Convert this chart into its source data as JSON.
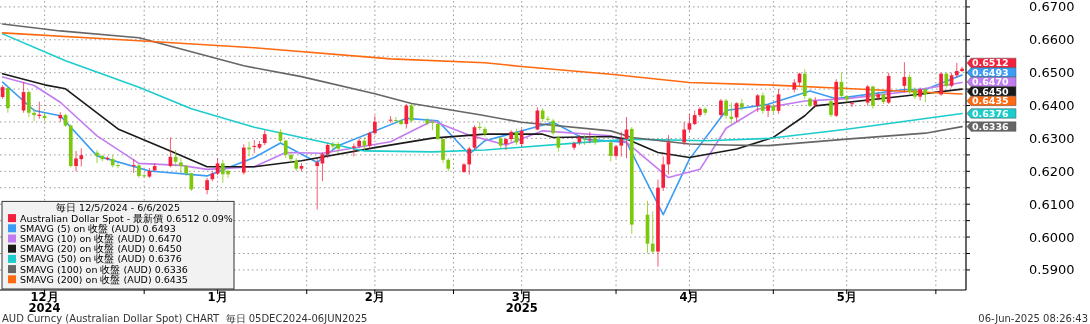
{
  "chart_data": {
    "type": "candlestick",
    "legend_title": "毎日 12/5/2024 - 6/6/2025",
    "legend": "bottom left",
    "grid": true,
    "xlim": [
      "2024-12-04T12:00",
      "2025-06-06T18:00"
    ],
    "ylim": [
      0.5839,
      0.6718
    ],
    "yticks": [
      {
        "value": 0.59,
        "label": "0.5900"
      },
      {
        "value": 0.595,
        "label": null
      },
      {
        "value": 0.6,
        "label": "0.6000"
      },
      {
        "value": 0.605,
        "label": null
      },
      {
        "value": 0.61,
        "label": "0.6100"
      },
      {
        "value": 0.615,
        "label": null
      },
      {
        "value": 0.62,
        "label": "0.6200"
      },
      {
        "value": 0.625,
        "label": null
      },
      {
        "value": 0.63,
        "label": "0.6300"
      },
      {
        "value": 0.635,
        "label": null
      },
      {
        "value": 0.64,
        "label": "0.6400"
      },
      {
        "value": 0.645,
        "label": null
      },
      {
        "value": 0.65,
        "label": "0.6500"
      },
      {
        "value": 0.655,
        "label": null
      },
      {
        "value": 0.66,
        "label": "0.6600"
      },
      {
        "value": 0.665,
        "label": null
      },
      {
        "value": 0.67,
        "label": "0.6700"
      }
    ],
    "xticks": [
      {
        "value": "2024-12-13",
        "label": "12月\n2024"
      },
      {
        "value": "2025-01-01",
        "label": null
      },
      {
        "value": "2025-01-15",
        "label": "1月"
      },
      {
        "value": "2025-02-01",
        "label": null
      },
      {
        "value": "2025-02-14",
        "label": "2月"
      },
      {
        "value": "2025-03-01",
        "label": null
      },
      {
        "value": "2025-03-14",
        "label": "3月\n2025"
      },
      {
        "value": "2025-04-01",
        "label": null
      },
      {
        "value": "2025-04-15",
        "label": "4月"
      },
      {
        "value": "2025-05-01",
        "label": null
      },
      {
        "value": "2025-05-15",
        "label": "5月"
      },
      {
        "value": "2025-06-01",
        "label": null
      }
    ],
    "annotations": [
      "AUD Curncy (Australian Dollar Spot) CHART  毎日 05DEC2024-06JUN2025",
      "06-Jun-2025 08:26:43"
    ],
    "series": [
      {
        "name": "Australian Dollar Spot - 最新價 0.6512 0.09%",
        "color": "#f5203c",
        "x": [
          "2024-12-05",
          "2024-12-06",
          "2024-12-09",
          "2024-12-10",
          "2024-12-11",
          "2024-12-12",
          "2024-12-13",
          "2024-12-16",
          "2024-12-17",
          "2024-12-18",
          "2024-12-19",
          "2024-12-20",
          "2024-12-23",
          "2024-12-24",
          "2024-12-25",
          "2024-12-26",
          "2024-12-27",
          "2024-12-30",
          "2024-12-31",
          "2025-01-01",
          "2025-01-02",
          "2025-01-03",
          "2025-01-06",
          "2025-01-07",
          "2025-01-08",
          "2025-01-09",
          "2025-01-10",
          "2025-01-13",
          "2025-01-14",
          "2025-01-15",
          "2025-01-16",
          "2025-01-17",
          "2025-01-20",
          "2025-01-21",
          "2025-01-22",
          "2025-01-23",
          "2025-01-24",
          "2025-01-27",
          "2025-01-28",
          "2025-01-29",
          "2025-01-30",
          "2025-01-31",
          "2025-02-03",
          "2025-02-04",
          "2025-02-05",
          "2025-02-06",
          "2025-02-07",
          "2025-02-10",
          "2025-02-11",
          "2025-02-12",
          "2025-02-13",
          "2025-02-14",
          "2025-02-17",
          "2025-02-18",
          "2025-02-19",
          "2025-02-20",
          "2025-02-21",
          "2025-02-24",
          "2025-02-25",
          "2025-02-26",
          "2025-02-27",
          "2025-02-28",
          "2025-03-03",
          "2025-03-04",
          "2025-03-05",
          "2025-03-06",
          "2025-03-07",
          "2025-03-10",
          "2025-03-11",
          "2025-03-12",
          "2025-03-13",
          "2025-03-14",
          "2025-03-17",
          "2025-03-18",
          "2025-03-19",
          "2025-03-20",
          "2025-03-21",
          "2025-03-24",
          "2025-03-25",
          "2025-03-26",
          "2025-03-27",
          "2025-03-28",
          "2025-03-31",
          "2025-04-01",
          "2025-04-02",
          "2025-04-03",
          "2025-04-04",
          "2025-04-07",
          "2025-04-08",
          "2025-04-09",
          "2025-04-10",
          "2025-04-11",
          "2025-04-14",
          "2025-04-15",
          "2025-04-16",
          "2025-04-17",
          "2025-04-18",
          "2025-04-21",
          "2025-04-22",
          "2025-04-23",
          "2025-04-24",
          "2025-04-25",
          "2025-04-28",
          "2025-04-29",
          "2025-04-30",
          "2025-05-01",
          "2025-05-02",
          "2025-05-05",
          "2025-05-06",
          "2025-05-07",
          "2025-05-08",
          "2025-05-09",
          "2025-05-12",
          "2025-05-13",
          "2025-05-14",
          "2025-05-15",
          "2025-05-16",
          "2025-05-19",
          "2025-05-20",
          "2025-05-21",
          "2025-05-22",
          "2025-05-23",
          "2025-05-26",
          "2025-05-27",
          "2025-05-28",
          "2025-05-29",
          "2025-05-30",
          "2025-06-02",
          "2025-06-03",
          "2025-06-04",
          "2025-06-05",
          "2025-06-06"
        ],
        "ohlc": [
          [
            0.6426,
            0.6462,
            0.642,
            0.6456
          ],
          [
            0.6453,
            0.6458,
            0.6378,
            0.6392
          ],
          [
            0.6385,
            0.6471,
            0.6378,
            0.6441
          ],
          [
            0.6441,
            0.6445,
            0.6365,
            0.6378
          ],
          [
            0.6378,
            0.6392,
            0.6352,
            0.6371
          ],
          [
            0.6368,
            0.6412,
            0.636,
            0.6372
          ],
          [
            0.6369,
            0.6378,
            0.6352,
            0.6362
          ],
          [
            0.6361,
            0.638,
            0.635,
            0.6371
          ],
          [
            0.6371,
            0.6375,
            0.6335,
            0.6339
          ],
          [
            0.6339,
            0.6342,
            0.6212,
            0.6216
          ],
          [
            0.6216,
            0.6262,
            0.62,
            0.6239
          ],
          [
            0.6237,
            0.627,
            0.6215,
            0.6249
          ],
          [
            0.6257,
            0.6265,
            0.6225,
            0.6247
          ],
          [
            0.6247,
            0.625,
            0.623,
            0.6237
          ],
          [
            0.6237,
            0.6245,
            0.6233,
            0.6241
          ],
          [
            0.6237,
            0.625,
            0.6212,
            0.6218
          ],
          [
            0.6219,
            0.6225,
            0.621,
            0.6217
          ],
          [
            0.6216,
            0.6237,
            0.6195,
            0.6219
          ],
          [
            0.6218,
            0.6222,
            0.618,
            0.6186
          ],
          [
            0.6188,
            0.6192,
            0.618,
            0.6186
          ],
          [
            0.6184,
            0.621,
            0.618,
            0.6201
          ],
          [
            0.6203,
            0.6225,
            0.62,
            0.6216
          ],
          [
            0.6216,
            0.6303,
            0.6212,
            0.6244
          ],
          [
            0.6244,
            0.6265,
            0.6215,
            0.6229
          ],
          [
            0.6227,
            0.624,
            0.6195,
            0.6216
          ],
          [
            0.6216,
            0.622,
            0.6185,
            0.6194
          ],
          [
            0.6194,
            0.6196,
            0.614,
            0.6145
          ],
          [
            0.6143,
            0.618,
            0.613,
            0.6173
          ],
          [
            0.6176,
            0.62,
            0.617,
            0.6193
          ],
          [
            0.6193,
            0.624,
            0.6188,
            0.6224
          ],
          [
            0.6224,
            0.6235,
            0.6165,
            0.6191
          ],
          [
            0.6201,
            0.6205,
            0.618,
            0.6191
          ],
          [
            0.6196,
            0.6282,
            0.619,
            0.6272
          ],
          [
            0.6272,
            0.629,
            0.6245,
            0.6267
          ],
          [
            0.6275,
            0.6295,
            0.6255,
            0.6277
          ],
          [
            0.6272,
            0.6292,
            0.6268,
            0.6283
          ],
          [
            0.6286,
            0.6325,
            0.628,
            0.6313
          ],
          [
            0.632,
            0.6328,
            0.6285,
            0.6293
          ],
          [
            0.6293,
            0.6296,
            0.624,
            0.625
          ],
          [
            0.625,
            0.6255,
            0.6225,
            0.6237
          ],
          [
            0.6232,
            0.624,
            0.62,
            0.6208
          ],
          [
            0.6208,
            0.6225,
            0.62,
            0.6216
          ],
          [
            0.6216,
            0.6237,
            0.6084,
            0.6227
          ],
          [
            0.6224,
            0.6258,
            0.617,
            0.6252
          ],
          [
            0.6252,
            0.6285,
            0.624,
            0.628
          ],
          [
            0.6283,
            0.629,
            0.6265,
            0.6276
          ],
          [
            0.6283,
            0.629,
            0.6255,
            0.6269
          ],
          [
            0.6272,
            0.6285,
            0.6245,
            0.6276
          ],
          [
            0.6276,
            0.63,
            0.627,
            0.6293
          ],
          [
            0.6293,
            0.6305,
            0.6265,
            0.6278
          ],
          [
            0.6278,
            0.632,
            0.627,
            0.6316
          ],
          [
            0.6316,
            0.637,
            0.631,
            0.6351
          ],
          [
            0.6355,
            0.6368,
            0.6348,
            0.6357
          ],
          [
            0.6356,
            0.6365,
            0.6345,
            0.6354
          ],
          [
            0.6354,
            0.6358,
            0.634,
            0.6344
          ],
          [
            0.6344,
            0.6405,
            0.633,
            0.64
          ],
          [
            0.64,
            0.6405,
            0.6348,
            0.6354
          ],
          [
            0.6357,
            0.6362,
            0.634,
            0.6346
          ],
          [
            0.635,
            0.6356,
            0.6325,
            0.6348
          ],
          [
            0.6344,
            0.6346,
            0.6295,
            0.6298
          ],
          [
            0.6298,
            0.63,
            0.6225,
            0.6235
          ],
          [
            0.6235,
            0.624,
            0.62,
            0.6208
          ],
          [
            0.6198,
            0.6225,
            0.6195,
            0.6221
          ],
          [
            0.6221,
            0.6275,
            0.619,
            0.6269
          ],
          [
            0.6272,
            0.634,
            0.6265,
            0.6334
          ],
          [
            0.6335,
            0.635,
            0.6325,
            0.6333
          ],
          [
            0.6329,
            0.6335,
            0.6305,
            0.6313
          ],
          [
            0.63,
            0.6305,
            0.627,
            0.6278
          ],
          [
            0.6283,
            0.6302,
            0.6265,
            0.6298
          ],
          [
            0.6298,
            0.6325,
            0.629,
            0.632
          ],
          [
            0.632,
            0.633,
            0.628,
            0.6288
          ],
          [
            0.6283,
            0.633,
            0.6275,
            0.6323
          ],
          [
            0.6327,
            0.6395,
            0.6325,
            0.6385
          ],
          [
            0.6385,
            0.6392,
            0.635,
            0.6359
          ],
          [
            0.636,
            0.6368,
            0.635,
            0.6358
          ],
          [
            0.6354,
            0.636,
            0.631,
            0.6316
          ],
          [
            0.6303,
            0.6308,
            0.626,
            0.6272
          ],
          [
            0.6272,
            0.629,
            0.6265,
            0.6285
          ],
          [
            0.6288,
            0.631,
            0.628,
            0.6303
          ],
          [
            0.6299,
            0.631,
            0.628,
            0.6297
          ],
          [
            0.6295,
            0.632,
            0.6285,
            0.6297
          ],
          [
            0.6303,
            0.631,
            0.628,
            0.6288
          ],
          [
            0.6288,
            0.6292,
            0.623,
            0.6247
          ],
          [
            0.6247,
            0.628,
            0.624,
            0.6276
          ],
          [
            0.6278,
            0.632,
            0.6245,
            0.6298
          ],
          [
            0.6298,
            0.6365,
            0.624,
            0.6327
          ],
          [
            0.6329,
            0.6335,
            0.601,
            0.6038
          ],
          [
            0.6068,
            0.611,
            0.595,
            0.598
          ],
          [
            0.598,
            0.6078,
            0.595,
            0.5956
          ],
          [
            0.5956,
            0.6175,
            0.591,
            0.615
          ],
          [
            0.615,
            0.6245,
            0.614,
            0.6221
          ],
          [
            0.6221,
            0.631,
            0.619,
            0.6288
          ],
          [
            0.6288,
            0.635,
            0.628,
            0.6327
          ],
          [
            0.6327,
            0.6375,
            0.632,
            0.6346
          ],
          [
            0.6344,
            0.6385,
            0.634,
            0.6371
          ],
          [
            0.6371,
            0.6395,
            0.6365,
            0.639
          ],
          [
            0.639,
            0.6395,
            0.637,
            0.6378
          ],
          [
            0.6371,
            0.642,
            0.6365,
            0.6415
          ],
          [
            0.6415,
            0.642,
            0.636,
            0.6369
          ],
          [
            0.6366,
            0.6409,
            0.6343,
            0.6359
          ],
          [
            0.6364,
            0.641,
            0.635,
            0.6407
          ],
          [
            0.6407,
            0.642,
            0.6385,
            0.6394
          ],
          [
            0.6399,
            0.6435,
            0.638,
            0.6431
          ],
          [
            0.6431,
            0.644,
            0.6375,
            0.6384
          ],
          [
            0.6384,
            0.6405,
            0.6365,
            0.6401
          ],
          [
            0.6399,
            0.6405,
            0.6375,
            0.6384
          ],
          [
            0.6384,
            0.645,
            0.6375,
            0.6434
          ],
          [
            0.6449,
            0.648,
            0.644,
            0.647
          ],
          [
            0.647,
            0.65,
            0.646,
            0.6497
          ],
          [
            0.6497,
            0.651,
            0.642,
            0.6429
          ],
          [
            0.6421,
            0.6425,
            0.6395,
            0.6399
          ],
          [
            0.6401,
            0.6425,
            0.6395,
            0.6414
          ],
          [
            0.6413,
            0.642,
            0.6365,
            0.6371
          ],
          [
            0.6369,
            0.648,
            0.6365,
            0.6472
          ],
          [
            0.6472,
            0.65,
            0.6425,
            0.6429
          ],
          [
            0.6429,
            0.6432,
            0.641,
            0.6419
          ],
          [
            0.6405,
            0.6412,
            0.6395,
            0.6407
          ],
          [
            0.6409,
            0.6462,
            0.64,
            0.6458
          ],
          [
            0.6458,
            0.646,
            0.639,
            0.6399
          ],
          [
            0.6424,
            0.644,
            0.6415,
            0.6434
          ],
          [
            0.6434,
            0.644,
            0.6405,
            0.6411
          ],
          [
            0.6409,
            0.65,
            0.6405,
            0.649
          ],
          [
            0.646,
            0.6532,
            0.644,
            0.6487
          ],
          [
            0.6487,
            0.6495,
            0.6435,
            0.6441
          ],
          [
            0.6449,
            0.6455,
            0.642,
            0.6427
          ],
          [
            0.6427,
            0.6455,
            0.6415,
            0.6449
          ],
          [
            0.6449,
            0.6455,
            0.641,
            0.6434
          ],
          [
            0.6434,
            0.65,
            0.643,
            0.6497
          ],
          [
            0.6497,
            0.65,
            0.6455,
            0.646
          ],
          [
            0.646,
            0.65,
            0.6455,
            0.6492
          ],
          [
            0.6492,
            0.653,
            0.6485,
            0.6505
          ],
          [
            0.6505,
            0.6518,
            0.6502,
            0.6512
          ]
        ],
        "colors": [
          "#f5203c",
          "#7cc80c",
          "#f5203c",
          "#7cc80c",
          "#7cc80c",
          "#f5203c",
          "#7cc80c",
          "#f5203c",
          "#7cc80c",
          "#7cc80c",
          "#f5203c",
          "#f5203c",
          "#7cc80c",
          "#7cc80c",
          "#f5203c",
          "#7cc80c",
          "#7cc80c",
          "#f5203c",
          "#7cc80c",
          "#7cc80c",
          "#f5203c",
          "#f5203c",
          "#f5203c",
          "#7cc80c",
          "#7cc80c",
          "#7cc80c",
          "#7cc80c",
          "#f5203c",
          "#f5203c",
          "#f5203c",
          "#7cc80c",
          "#7cc80c",
          "#f5203c",
          "#7cc80c",
          "#f5203c",
          "#f5203c",
          "#f5203c",
          "#7cc80c",
          "#7cc80c",
          "#7cc80c",
          "#7cc80c",
          "#f5203c",
          "#f5203c",
          "#f5203c",
          "#f5203c",
          "#7cc80c",
          "#7cc80c",
          "#f5203c",
          "#f5203c",
          "#7cc80c",
          "#f5203c",
          "#f5203c",
          "#f5203c",
          "#7cc80c",
          "#7cc80c",
          "#f5203c",
          "#7cc80c",
          "#7cc80c",
          "#7cc80c",
          "#7cc80c",
          "#7cc80c",
          "#7cc80c",
          "#f5203c",
          "#f5203c",
          "#f5203c",
          "#7cc80c",
          "#7cc80c",
          "#7cc80c",
          "#f5203c",
          "#f5203c",
          "#7cc80c",
          "#f5203c",
          "#f5203c",
          "#7cc80c",
          "#7cc80c",
          "#7cc80c",
          "#7cc80c",
          "#f5203c",
          "#f5203c",
          "#7cc80c",
          "#f5203c",
          "#7cc80c",
          "#7cc80c",
          "#f5203c",
          "#f5203c",
          "#f5203c",
          "#7cc80c",
          "#7cc80c",
          "#7cc80c",
          "#f5203c",
          "#f5203c",
          "#f5203c",
          "#f5203c",
          "#f5203c",
          "#f5203c",
          "#f5203c",
          "#7cc80c",
          "#f5203c",
          "#7cc80c",
          "#7cc80c",
          "#f5203c",
          "#7cc80c",
          "#f5203c",
          "#7cc80c",
          "#f5203c",
          "#7cc80c",
          "#f5203c",
          "#f5203c",
          "#f5203c",
          "#7cc80c",
          "#7cc80c",
          "#f5203c",
          "#7cc80c",
          "#f5203c",
          "#7cc80c",
          "#7cc80c",
          "#f5203c",
          "#f5203c",
          "#7cc80c",
          "#f5203c",
          "#7cc80c",
          "#f5203c",
          "#f5203c",
          "#7cc80c",
          "#7cc80c",
          "#f5203c",
          "#7cc80c",
          "#f5203c",
          "#7cc80c",
          "#f5203c",
          "#f5203c",
          "#f5203c"
        ],
        "value_labels": [
          null,
          null,
          null,
          null,
          null,
          null,
          null,
          null,
          null,
          null,
          null,
          null,
          null,
          null,
          null,
          null,
          null,
          null,
          null,
          null,
          null,
          null,
          null,
          null,
          null,
          null,
          null,
          null,
          null,
          null,
          null,
          null,
          null,
          null,
          null,
          null,
          null,
          null,
          null,
          null,
          null,
          null,
          null,
          null,
          null,
          null,
          null,
          null,
          null,
          null,
          null,
          null,
          null,
          null,
          null,
          null,
          null,
          null,
          null,
          null,
          null,
          null,
          null,
          null,
          null,
          null,
          null,
          null,
          null,
          null,
          null,
          null,
          null,
          null,
          null,
          null,
          null,
          null,
          null,
          null,
          null,
          null,
          null,
          null,
          null,
          null,
          null,
          null,
          null,
          null,
          null,
          null,
          null,
          null,
          null,
          null,
          null,
          null,
          null,
          null,
          null,
          null,
          null,
          null,
          null,
          null,
          null,
          null,
          null,
          null,
          null,
          null,
          null,
          null,
          null,
          null,
          null,
          null,
          null,
          null,
          null,
          null,
          null,
          null,
          null,
          null,
          null,
          null,
          null,
          null,
          null,
          "0.6512"
        ]
      },
      {
        "name": "SMAVG (5) on 收盤 (AUD) 0.6493",
        "type": "line",
        "color": "#3a9cf5",
        "x": [
          "2024-12-05",
          "2024-12-11",
          "2024-12-16",
          "2024-12-23",
          "2025-01-02",
          "2025-01-13",
          "2025-01-22",
          "2025-01-27",
          "2025-02-03",
          "2025-02-07",
          "2025-02-20",
          "2025-02-26",
          "2025-03-04",
          "2025-03-07",
          "2025-03-11",
          "2025-03-20",
          "2025-03-26",
          "2025-04-03",
          "2025-04-10",
          "2025-04-15",
          "2025-04-22",
          "2025-04-30",
          "2025-05-08",
          "2025-05-13",
          "2025-05-26",
          "2025-05-30",
          "2025-06-06"
        ],
        "values": [
          0.6471,
          0.6385,
          0.6369,
          0.6247,
          0.6201,
          0.6186,
          0.6242,
          0.6286,
          0.6227,
          0.6278,
          0.6361,
          0.6354,
          0.6252,
          0.6293,
          0.631,
          0.6349,
          0.6298,
          0.6288,
          0.6068,
          0.6237,
          0.6385,
          0.6404,
          0.6444,
          0.6421,
          0.6449,
          0.6449,
          0.6493
        ],
        "value_labels": [
          null,
          null,
          null,
          null,
          null,
          null,
          null,
          null,
          null,
          null,
          null,
          null,
          null,
          null,
          null,
          null,
          null,
          null,
          null,
          null,
          null,
          null,
          null,
          null,
          null,
          null,
          "0.6493"
        ]
      },
      {
        "name": "SMAVG (10) on 收盤 (AUD) 0.6470",
        "type": "line",
        "color": "#c27cf0",
        "x": [
          "2024-12-05",
          "2024-12-11",
          "2024-12-16",
          "2024-12-23",
          "2024-12-31",
          "2025-01-08",
          "2025-01-13",
          "2025-01-22",
          "2025-01-28",
          "2025-02-04",
          "2025-02-17",
          "2025-02-25",
          "2025-03-04",
          "2025-03-11",
          "2025-03-18",
          "2025-03-31",
          "2025-04-03",
          "2025-04-11",
          "2025-04-17",
          "2025-04-22",
          "2025-04-28",
          "2025-05-07",
          "2025-05-15",
          "2025-05-26",
          "2025-06-06"
        ],
        "values": [
          0.6487,
          0.6461,
          0.641,
          0.6308,
          0.6224,
          0.6218,
          0.6206,
          0.6214,
          0.6257,
          0.6255,
          0.629,
          0.6354,
          0.631,
          0.628,
          0.6323,
          0.6308,
          0.6288,
          0.6181,
          0.6206,
          0.6331,
          0.6389,
          0.6414,
          0.6421,
          0.6441,
          0.647
        ],
        "value_labels": [
          null,
          null,
          null,
          null,
          null,
          null,
          null,
          null,
          null,
          null,
          null,
          null,
          null,
          null,
          null,
          null,
          null,
          null,
          null,
          null,
          null,
          null,
          null,
          null,
          "0.6470"
        ]
      },
      {
        "name": "SMAVG (20) on 收盤 (AUD) 0.6450",
        "type": "line",
        "color": "#1a1a1a",
        "x": [
          "2024-12-05",
          "2024-12-13",
          "2024-12-17",
          "2024-12-27",
          "2025-01-06",
          "2025-01-13",
          "2025-01-22",
          "2025-01-31",
          "2025-02-14",
          "2025-02-25",
          "2025-03-07",
          "2025-03-18",
          "2025-03-20",
          "2025-03-31",
          "2025-04-03",
          "2025-04-09",
          "2025-04-15",
          "2025-04-24",
          "2025-05-01",
          "2025-05-07",
          "2025-05-09",
          "2025-05-26",
          "2025-06-06"
        ],
        "values": [
          0.6497,
          0.6463,
          0.6451,
          0.6329,
          0.6262,
          0.6214,
          0.6214,
          0.6232,
          0.6272,
          0.6301,
          0.6313,
          0.6313,
          0.6303,
          0.6306,
          0.6298,
          0.6257,
          0.6242,
          0.6268,
          0.6303,
          0.6369,
          0.6399,
          0.6429,
          0.645
        ],
        "value_labels": [
          null,
          null,
          null,
          null,
          null,
          null,
          null,
          null,
          null,
          null,
          null,
          null,
          null,
          null,
          null,
          null,
          null,
          null,
          null,
          null,
          null,
          null,
          "0.6450"
        ]
      },
      {
        "name": "SMAVG (50) on 收盤 (AUD) 0.6376",
        "type": "line",
        "color": "#1ccccc",
        "x": [
          "2024-12-05",
          "2024-12-17",
          "2024-12-31",
          "2025-01-10",
          "2025-01-22",
          "2025-01-31",
          "2025-02-12",
          "2025-02-25",
          "2025-03-07",
          "2025-03-26",
          "2025-04-04",
          "2025-04-18",
          "2025-04-30",
          "2025-05-15",
          "2025-06-06"
        ],
        "values": [
          0.6618,
          0.6536,
          0.6456,
          0.639,
          0.6334,
          0.6303,
          0.6262,
          0.6259,
          0.6265,
          0.6288,
          0.6298,
          0.6293,
          0.63,
          0.6328,
          0.6376
        ],
        "value_labels": [
          null,
          null,
          null,
          null,
          null,
          null,
          null,
          null,
          null,
          null,
          null,
          null,
          null,
          null,
          "0.6376"
        ]
      },
      {
        "name": "SMAVG (100) on 收盤 (AUD) 0.6336",
        "type": "line",
        "color": "#666666",
        "x": [
          "2024-12-05",
          "2024-12-16",
          "2024-12-31",
          "2025-01-20",
          "2025-01-31",
          "2025-02-14",
          "2025-02-21",
          "2025-03-06",
          "2025-03-14",
          "2025-03-31",
          "2025-04-04",
          "2025-04-15",
          "2025-04-22",
          "2025-04-30",
          "2025-05-15",
          "2025-05-30",
          "2025-06-06"
        ],
        "values": [
          0.6648,
          0.6627,
          0.6606,
          0.6521,
          0.6488,
          0.6436,
          0.6406,
          0.6372,
          0.6349,
          0.6323,
          0.6303,
          0.6283,
          0.628,
          0.6278,
          0.6298,
          0.6316,
          0.6336
        ],
        "value_labels": [
          null,
          null,
          null,
          null,
          null,
          null,
          null,
          null,
          null,
          null,
          null,
          null,
          null,
          null,
          null,
          null,
          "0.6336"
        ]
      },
      {
        "name": "SMAVG (200) on 收盤 (AUD) 0.6435",
        "type": "line",
        "color": "#ff6a10",
        "x": [
          "2024-12-05",
          "2024-12-31",
          "2025-01-22",
          "2025-02-17",
          "2025-03-07",
          "2025-03-14",
          "2025-03-31",
          "2025-04-15",
          "2025-05-01",
          "2025-05-15",
          "2025-06-06"
        ],
        "values": [
          0.6621,
          0.6597,
          0.6576,
          0.6542,
          0.653,
          0.6519,
          0.6495,
          0.647,
          0.6462,
          0.6452,
          0.6435
        ],
        "value_labels": [
          null,
          null,
          null,
          null,
          null,
          null,
          null,
          null,
          null,
          null,
          "0.6435"
        ]
      }
    ]
  }
}
